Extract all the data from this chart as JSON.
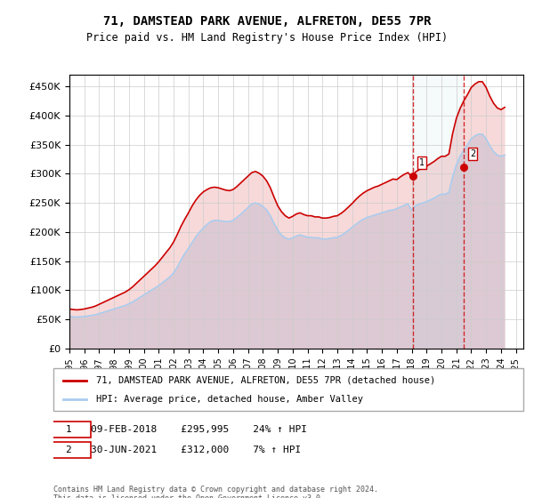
{
  "title": "71, DAMSTEAD PARK AVENUE, ALFRETON, DE55 7PR",
  "subtitle": "Price paid vs. HM Land Registry's House Price Index (HPI)",
  "ylabel": "",
  "ylim": [
    0,
    470000
  ],
  "yticks": [
    0,
    50000,
    100000,
    150000,
    200000,
    250000,
    300000,
    350000,
    400000,
    450000
  ],
  "ytick_labels": [
    "£0",
    "£50K",
    "£100K",
    "£150K",
    "£200K",
    "£250K",
    "£300K",
    "£350K",
    "£400K",
    "£450K"
  ],
  "xlim_start": 1995.0,
  "xlim_end": 2025.5,
  "background_color": "#ffffff",
  "plot_bg_color": "#ffffff",
  "grid_color": "#cccccc",
  "red_color": "#cc0000",
  "blue_color": "#aaccee",
  "marker1_date": 2018.1,
  "marker1_price": 295995,
  "marker1_label": "1",
  "marker1_text": "09-FEB-2018    £295,995    24% ↑ HPI",
  "marker2_date": 2021.5,
  "marker2_price": 312000,
  "marker2_label": "2",
  "marker2_text": "30-JUN-2021    £312,000    7% ↑ HPI",
  "legend_line1": "71, DAMSTEAD PARK AVENUE, ALFRETON, DE55 7PR (detached house)",
  "legend_line2": "HPI: Average price, detached house, Amber Valley",
  "footnote": "Contains HM Land Registry data © Crown copyright and database right 2024.\nThis data is licensed under the Open Government Licence v3.0.",
  "hpi_years": [
    1995.0,
    1995.25,
    1995.5,
    1995.75,
    1996.0,
    1996.25,
    1996.5,
    1996.75,
    1997.0,
    1997.25,
    1997.5,
    1997.75,
    1998.0,
    1998.25,
    1998.5,
    1998.75,
    1999.0,
    1999.25,
    1999.5,
    1999.75,
    2000.0,
    2000.25,
    2000.5,
    2000.75,
    2001.0,
    2001.25,
    2001.5,
    2001.75,
    2002.0,
    2002.25,
    2002.5,
    2002.75,
    2003.0,
    2003.25,
    2003.5,
    2003.75,
    2004.0,
    2004.25,
    2004.5,
    2004.75,
    2005.0,
    2005.25,
    2005.5,
    2005.75,
    2006.0,
    2006.25,
    2006.5,
    2006.75,
    2007.0,
    2007.25,
    2007.5,
    2007.75,
    2008.0,
    2008.25,
    2008.5,
    2008.75,
    2009.0,
    2009.25,
    2009.5,
    2009.75,
    2010.0,
    2010.25,
    2010.5,
    2010.75,
    2011.0,
    2011.25,
    2011.5,
    2011.75,
    2012.0,
    2012.25,
    2012.5,
    2012.75,
    2013.0,
    2013.25,
    2013.5,
    2013.75,
    2014.0,
    2014.25,
    2014.5,
    2014.75,
    2015.0,
    2015.25,
    2015.5,
    2015.75,
    2016.0,
    2016.25,
    2016.5,
    2016.75,
    2017.0,
    2017.25,
    2017.5,
    2017.75,
    2018.0,
    2018.25,
    2018.5,
    2018.75,
    2019.0,
    2019.25,
    2019.5,
    2019.75,
    2020.0,
    2020.25,
    2020.5,
    2020.75,
    2021.0,
    2021.25,
    2021.5,
    2021.75,
    2022.0,
    2022.25,
    2022.5,
    2022.75,
    2023.0,
    2023.25,
    2023.5,
    2023.75,
    2024.0,
    2024.25
  ],
  "hpi_values": [
    55000,
    54500,
    54000,
    54500,
    55000,
    56000,
    57000,
    58000,
    60000,
    62000,
    64000,
    66000,
    68000,
    70000,
    72000,
    74000,
    77000,
    80000,
    84000,
    88000,
    92000,
    96000,
    100000,
    104000,
    108000,
    113000,
    118000,
    123000,
    130000,
    140000,
    152000,
    163000,
    172000,
    182000,
    192000,
    200000,
    207000,
    213000,
    218000,
    220000,
    220000,
    219000,
    218000,
    218000,
    220000,
    225000,
    230000,
    236000,
    242000,
    248000,
    250000,
    248000,
    244000,
    238000,
    228000,
    215000,
    203000,
    195000,
    190000,
    188000,
    190000,
    193000,
    195000,
    193000,
    191000,
    191000,
    190000,
    190000,
    188000,
    188000,
    189000,
    190000,
    191000,
    194000,
    198000,
    203000,
    208000,
    213000,
    218000,
    222000,
    225000,
    227000,
    229000,
    231000,
    233000,
    235000,
    237000,
    238000,
    240000,
    243000,
    246000,
    248000,
    238000,
    245000,
    248000,
    250000,
    252000,
    255000,
    258000,
    262000,
    265000,
    265000,
    268000,
    295000,
    315000,
    330000,
    340000,
    350000,
    360000,
    365000,
    368000,
    368000,
    360000,
    348000,
    338000,
    332000,
    330000,
    332000
  ],
  "red_years": [
    1995.0,
    1995.25,
    1995.5,
    1995.75,
    1996.0,
    1996.25,
    1996.5,
    1996.75,
    1997.0,
    1997.25,
    1997.5,
    1997.75,
    1998.0,
    1998.25,
    1998.5,
    1998.75,
    1999.0,
    1999.25,
    1999.5,
    1999.75,
    2000.0,
    2000.25,
    2000.5,
    2000.75,
    2001.0,
    2001.25,
    2001.5,
    2001.75,
    2002.0,
    2002.25,
    2002.5,
    2002.75,
    2003.0,
    2003.25,
    2003.5,
    2003.75,
    2004.0,
    2004.25,
    2004.5,
    2004.75,
    2005.0,
    2005.25,
    2005.5,
    2005.75,
    2006.0,
    2006.25,
    2006.5,
    2006.75,
    2007.0,
    2007.25,
    2007.5,
    2007.75,
    2008.0,
    2008.25,
    2008.5,
    2008.75,
    2009.0,
    2009.25,
    2009.5,
    2009.75,
    2010.0,
    2010.25,
    2010.5,
    2010.75,
    2011.0,
    2011.25,
    2011.5,
    2011.75,
    2012.0,
    2012.25,
    2012.5,
    2012.75,
    2013.0,
    2013.25,
    2013.5,
    2013.75,
    2014.0,
    2014.25,
    2014.5,
    2014.75,
    2015.0,
    2015.25,
    2015.5,
    2015.75,
    2016.0,
    2016.25,
    2016.5,
    2016.75,
    2017.0,
    2017.25,
    2017.5,
    2017.75,
    2018.0,
    2018.25,
    2018.5,
    2018.75,
    2019.0,
    2019.25,
    2019.5,
    2019.75,
    2020.0,
    2020.25,
    2020.5,
    2020.75,
    2021.0,
    2021.25,
    2021.5,
    2021.75,
    2022.0,
    2022.25,
    2022.5,
    2022.75,
    2023.0,
    2023.25,
    2023.5,
    2023.75,
    2024.0,
    2024.25
  ],
  "red_values": [
    68000,
    67000,
    66500,
    67000,
    68000,
    69500,
    71000,
    73000,
    76000,
    79000,
    82000,
    85000,
    88000,
    91000,
    94000,
    97000,
    101000,
    106000,
    112000,
    118000,
    124000,
    130000,
    136000,
    142000,
    149000,
    157000,
    165000,
    173000,
    183000,
    196000,
    210000,
    222000,
    233000,
    245000,
    255000,
    263000,
    269000,
    273000,
    276000,
    277000,
    276000,
    274000,
    272000,
    271000,
    273000,
    278000,
    284000,
    290000,
    296000,
    302000,
    304000,
    301000,
    296000,
    288000,
    276000,
    260000,
    245000,
    235000,
    228000,
    224000,
    227000,
    231000,
    233000,
    230000,
    228000,
    228000,
    226000,
    226000,
    224000,
    224000,
    225000,
    227000,
    228000,
    232000,
    237000,
    243000,
    249000,
    256000,
    262000,
    267000,
    271000,
    274000,
    277000,
    279000,
    282000,
    285000,
    288000,
    291000,
    290000,
    295000,
    299000,
    302000,
    295000,
    303000,
    307000,
    310000,
    313000,
    317000,
    321000,
    326000,
    330000,
    330000,
    334000,
    369000,
    395000,
    412000,
    425000,
    436000,
    448000,
    454000,
    458000,
    458000,
    448000,
    433000,
    421000,
    413000,
    410000,
    414000
  ]
}
